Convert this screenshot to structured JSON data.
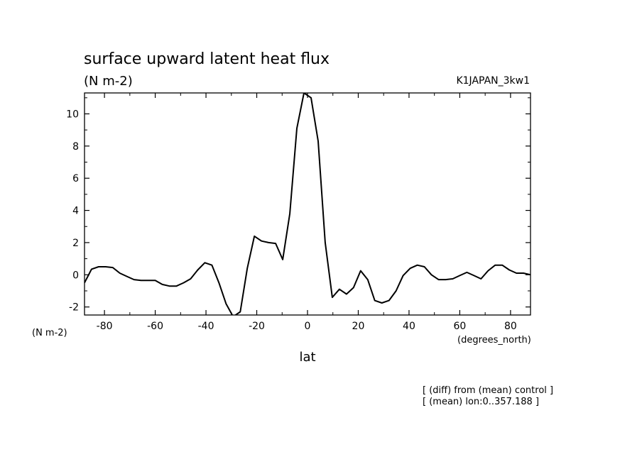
{
  "chart_data": {
    "type": "line",
    "title": "surface upward latent heat flux",
    "units_label": "(N m-2)",
    "experiment": "K1JAPAN_3kw1",
    "ylabel_bottom": "(N m-2)",
    "x_units": "(degrees_north)",
    "xlabel": "lat",
    "notes": [
      "[ (diff) from (mean) control ]",
      "[ (mean) lon:0..357.188 ]"
    ],
    "xlim": [
      -87.8638,
      87.8638
    ],
    "ylim": [
      -2.5,
      11.3
    ],
    "x_ticks": [
      -80,
      -60,
      -40,
      -20,
      0,
      20,
      40,
      60,
      80
    ],
    "x_tick_labels": [
      "-80",
      "-60",
      "-40",
      "-20",
      "0",
      "20",
      "40",
      "60",
      "80"
    ],
    "y_ticks": [
      -2,
      0,
      2,
      4,
      6,
      8,
      10
    ],
    "y_tick_labels": [
      "-2",
      "0",
      "2",
      "4",
      "6",
      "8",
      "10"
    ],
    "grid": false,
    "series": [
      {
        "x": [
          -87.86,
          -85.1,
          -82.31,
          -79.53,
          -76.74,
          -73.95,
          -71.16,
          -68.37,
          -65.58,
          -62.79,
          -60.0,
          -57.21,
          -54.42,
          -51.63,
          -48.84,
          -46.05,
          -43.26,
          -40.47,
          -37.67,
          -34.88,
          -32.09,
          -29.3,
          -26.51,
          -23.72,
          -20.93,
          -18.14,
          -15.35,
          -12.56,
          -9.77,
          -6.98,
          -4.19,
          -1.4,
          1.4,
          4.19,
          6.98,
          9.77,
          12.56,
          15.35,
          18.14,
          20.93,
          23.72,
          26.51,
          29.3,
          32.09,
          34.88,
          37.67,
          40.47,
          43.26,
          46.05,
          48.84,
          51.63,
          54.42,
          57.21,
          60.0,
          62.79,
          65.58,
          68.37,
          71.16,
          73.95,
          76.74,
          79.53,
          82.31,
          85.1,
          87.86
        ],
        "y": [
          -0.5,
          0.35,
          0.5,
          0.5,
          0.45,
          0.1,
          -0.1,
          -0.3,
          -0.35,
          -0.35,
          -0.35,
          -0.6,
          -0.7,
          -0.7,
          -0.5,
          -0.25,
          0.3,
          0.75,
          0.6,
          -0.5,
          -1.8,
          -2.6,
          -2.3,
          0.4,
          2.4,
          2.1,
          2.0,
          1.95,
          0.95,
          3.8,
          9.1,
          11.3,
          11.0,
          8.3,
          2.0,
          -1.4,
          -0.9,
          -1.2,
          -0.8,
          0.25,
          -0.3,
          -1.6,
          -1.75,
          -1.6,
          -1.0,
          -0.05,
          0.4,
          0.6,
          0.5,
          0.0,
          -0.3,
          -0.3,
          -0.25,
          -0.05,
          0.15,
          -0.05,
          -0.25,
          0.25,
          0.6,
          0.6,
          0.3,
          0.1,
          0.1,
          0.0
        ]
      }
    ]
  }
}
